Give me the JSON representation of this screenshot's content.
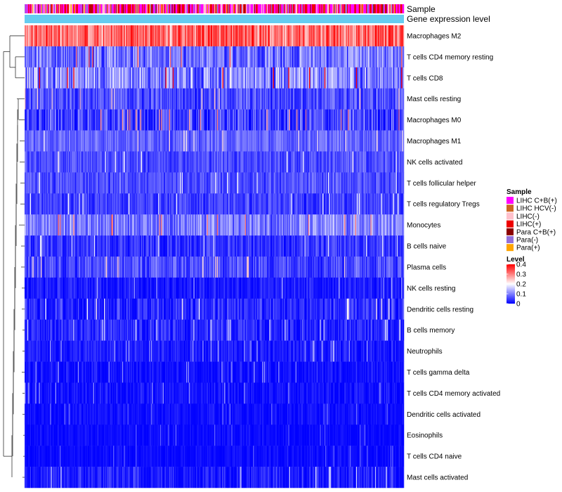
{
  "chart_data": {
    "type": "heatmap",
    "title": "",
    "annotations": [
      {
        "name": "Sample",
        "label": "Sample"
      },
      {
        "name": "Gene expression level",
        "label": "Gene expression level",
        "color": "#66ccf0"
      }
    ],
    "rows": [
      {
        "label": "Macrophages M2",
        "mean": 0.32,
        "spread": 0.08
      },
      {
        "label": "T cells CD4 memory resting",
        "mean": 0.09,
        "spread": 0.07
      },
      {
        "label": "T cells CD8",
        "mean": 0.11,
        "spread": 0.09
      },
      {
        "label": "Mast cells resting",
        "mean": 0.06,
        "spread": 0.05
      },
      {
        "label": "Macrophages M0",
        "mean": 0.05,
        "spread": 0.07
      },
      {
        "label": "Macrophages M1",
        "mean": 0.08,
        "spread": 0.04
      },
      {
        "label": "NK cells activated",
        "mean": 0.06,
        "spread": 0.04
      },
      {
        "label": "T cells follicular helper",
        "mean": 0.06,
        "spread": 0.04
      },
      {
        "label": "T cells regulatory  Tregs",
        "mean": 0.05,
        "spread": 0.04
      },
      {
        "label": "Monocytes",
        "mean": 0.1,
        "spread": 0.06
      },
      {
        "label": "B cells naive",
        "mean": 0.04,
        "spread": 0.04
      },
      {
        "label": "Plasma cells",
        "mean": 0.06,
        "spread": 0.05
      },
      {
        "label": "NK cells resting",
        "mean": 0.02,
        "spread": 0.03
      },
      {
        "label": "Dendritic cells resting",
        "mean": 0.03,
        "spread": 0.05
      },
      {
        "label": "B cells memory",
        "mean": 0.03,
        "spread": 0.04
      },
      {
        "label": "Neutrophils",
        "mean": 0.02,
        "spread": 0.03
      },
      {
        "label": "T cells gamma delta",
        "mean": 0.01,
        "spread": 0.03
      },
      {
        "label": "T cells CD4 memory activated",
        "mean": 0.01,
        "spread": 0.03
      },
      {
        "label": "Dendritic cells activated",
        "mean": 0.01,
        "spread": 0.02
      },
      {
        "label": "Eosinophils",
        "mean": 0.005,
        "spread": 0.02
      },
      {
        "label": "T cells CD4 naive",
        "mean": 0.005,
        "spread": 0.02
      },
      {
        "label": "Mast cells activated",
        "mean": 0.02,
        "spread": 0.04
      }
    ],
    "n_columns": 420,
    "sample_legend": {
      "title": "Sample",
      "entries": [
        {
          "label": "LIHC C+B(+)",
          "color": "#ff00ff"
        },
        {
          "label": "LIHC HCV(-)",
          "color": "#cc6622"
        },
        {
          "label": "LIHC(-)",
          "color": "#ffc0cb"
        },
        {
          "label": "LIHC(+)",
          "color": "#ee0000"
        },
        {
          "label": "Para C+B(+)",
          "color": "#8b0000"
        },
        {
          "label": "Para(-)",
          "color": "#9370db"
        },
        {
          "label": "Para(+)",
          "color": "#ffa500"
        }
      ]
    },
    "level_legend": {
      "title": "Level",
      "range": [
        0,
        0.4
      ],
      "ticks": [
        "0.4",
        "0.3",
        "0.2",
        "0.1",
        "0"
      ],
      "tick_values": [
        0.4,
        0.3,
        0.2,
        0.1,
        0
      ],
      "color_low": "#0000ff",
      "color_mid": "#ffffff",
      "color_high": "#ff0000",
      "mid_value": 0.2
    }
  }
}
